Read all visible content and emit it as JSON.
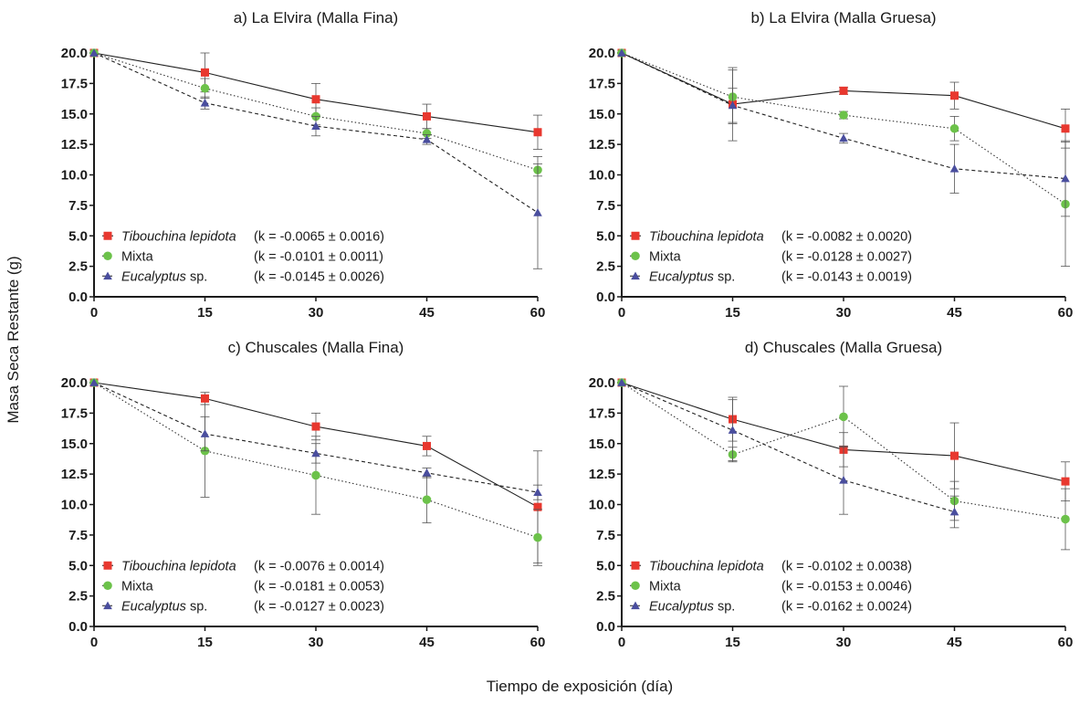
{
  "colors": {
    "tibouchina": "#e8382f",
    "mixta": "#6cc24a",
    "eucalyptus": "#4a4e9e",
    "axis": "#1a1a1a",
    "errorbar": "#555555"
  },
  "y_axis_label": "Masa Seca Restante (g)",
  "x_axis_label": "Tiempo de exposición (día)",
  "chart_data": [
    {
      "type": "line",
      "title": "a) La Elvira (Malla Fina)",
      "x": [
        0,
        15,
        30,
        45,
        60
      ],
      "x_ticks": [
        "0",
        "15",
        "30",
        "45",
        "60"
      ],
      "y_ticks": [
        "0.0",
        "2.5",
        "5.0",
        "7.5",
        "10.0",
        "12.5",
        "15.0",
        "17.5",
        "20.0"
      ],
      "xlim": [
        0,
        60
      ],
      "ylim": [
        0,
        20
      ],
      "legend_position": "bottom-left",
      "series": [
        {
          "name": "Tibouchina lepidota",
          "k": "(k = -0.0065 ± 0.0016)",
          "style": "solid",
          "marker": "square",
          "values": [
            20.0,
            18.4,
            16.2,
            14.8,
            13.5
          ],
          "errors": [
            0,
            1.6,
            1.3,
            1.0,
            1.4
          ]
        },
        {
          "name": "Mixta",
          "k": "(k = -0.0101 ± 0.0011)",
          "style": "dotted",
          "marker": "circle",
          "values": [
            20.0,
            17.1,
            14.8,
            13.4,
            10.4
          ],
          "errors": [
            0,
            0.8,
            0.7,
            0.4,
            0.5
          ]
        },
        {
          "name": "Eucalyptus sp.",
          "k": "(k = -0.0145 ± 0.0026)",
          "style": "dashed",
          "marker": "triangle",
          "values": [
            20.0,
            15.9,
            14.0,
            12.9,
            6.9
          ],
          "errors": [
            0,
            0.5,
            0.8,
            0.4,
            4.6
          ]
        }
      ]
    },
    {
      "type": "line",
      "title": "b) La Elvira (Malla Gruesa)",
      "x": [
        0,
        15,
        30,
        45,
        60
      ],
      "x_ticks": [
        "0",
        "15",
        "30",
        "45",
        "60"
      ],
      "y_ticks": [
        "0.0",
        "2.5",
        "5.0",
        "7.5",
        "10.0",
        "12.5",
        "15.0",
        "17.5",
        "20.0"
      ],
      "xlim": [
        0,
        60
      ],
      "ylim": [
        0,
        20
      ],
      "legend_position": "bottom-left",
      "series": [
        {
          "name": "Tibouchina lepidota",
          "k": "(k = -0.0082 ± 0.0020)",
          "style": "solid",
          "marker": "square",
          "values": [
            20.0,
            15.8,
            16.9,
            16.5,
            13.8
          ],
          "errors": [
            0,
            3.0,
            0.3,
            1.1,
            1.6
          ]
        },
        {
          "name": "Mixta",
          "k": "(k = -0.0128 ± 0.0027)",
          "style": "dotted",
          "marker": "circle",
          "values": [
            20.0,
            16.4,
            14.9,
            13.8,
            7.6
          ],
          "errors": [
            0,
            2.2,
            0.3,
            1.0,
            5.1
          ]
        },
        {
          "name": "Eucalyptus sp.",
          "k": "(k = -0.0143 ± 0.0019)",
          "style": "dashed",
          "marker": "triangle",
          "values": [
            20.0,
            15.7,
            13.0,
            10.5,
            9.7
          ],
          "errors": [
            0,
            1.4,
            0.4,
            2.0,
            3.1
          ]
        }
      ]
    },
    {
      "type": "line",
      "title": "c) Chuscales (Malla Fina)",
      "x": [
        0,
        15,
        30,
        45,
        60
      ],
      "x_ticks": [
        "0",
        "15",
        "30",
        "45",
        "60"
      ],
      "y_ticks": [
        "0.0",
        "2.5",
        "5.0",
        "7.5",
        "10.0",
        "12.5",
        "15.0",
        "17.5",
        "20.0"
      ],
      "xlim": [
        0,
        60
      ],
      "ylim": [
        0,
        20
      ],
      "legend_position": "bottom-left",
      "series": [
        {
          "name": "Tibouchina lepidota",
          "k": "(k = -0.0076 ± 0.0014)",
          "style": "solid",
          "marker": "square",
          "values": [
            20.0,
            18.7,
            16.4,
            14.8,
            9.8
          ],
          "errors": [
            0,
            0.5,
            1.1,
            0.8,
            4.6
          ]
        },
        {
          "name": "Mixta",
          "k": "(k = -0.0181 ± 0.0053)",
          "style": "dotted",
          "marker": "circle",
          "values": [
            20.0,
            14.4,
            12.4,
            10.4,
            7.3
          ],
          "errors": [
            0,
            3.8,
            3.2,
            1.9,
            2.3
          ]
        },
        {
          "name": "Eucalyptus sp.",
          "k": "(k = -0.0127 ± 0.0023)",
          "style": "dashed",
          "marker": "triangle",
          "values": [
            20.0,
            15.8,
            14.2,
            12.6,
            11.0
          ],
          "errors": [
            0,
            1.4,
            0.8,
            0.4,
            0.6
          ]
        }
      ]
    },
    {
      "type": "line",
      "title": "d) Chuscales (Malla Gruesa)",
      "x": [
        0,
        15,
        30,
        45,
        60
      ],
      "x_ticks": [
        "0",
        "15",
        "30",
        "45",
        "60"
      ],
      "y_ticks": [
        "0.0",
        "2.5",
        "5.0",
        "7.5",
        "10.0",
        "12.5",
        "15.0",
        "17.5",
        "20.0"
      ],
      "xlim": [
        0,
        60
      ],
      "ylim": [
        0,
        20
      ],
      "legend_position": "bottom-left",
      "series": [
        {
          "name": "Tibouchina lepidota",
          "k": "(k = -0.0102 ± 0.0038)",
          "style": "solid",
          "marker": "square",
          "values": [
            20.0,
            17.0,
            14.5,
            14.0,
            11.9
          ],
          "errors": [
            0,
            1.8,
            1.4,
            2.7,
            1.6
          ]
        },
        {
          "name": "Mixta",
          "k": "(k = -0.0153 ± 0.0046)",
          "style": "dotted",
          "marker": "circle",
          "values": [
            20.0,
            14.1,
            17.2,
            10.3,
            8.8
          ],
          "errors": [
            0,
            0.6,
            2.5,
            1.6,
            2.5
          ]
        },
        {
          "name": "Eucalyptus sp.",
          "k": "(k = -0.0162 ± 0.0024)",
          "style": "dashed",
          "marker": "triangle",
          "values": [
            20.0,
            16.1,
            12.0,
            9.4,
            null
          ],
          "errors": [
            0,
            2.5,
            2.8,
            1.3,
            0
          ]
        }
      ]
    }
  ]
}
